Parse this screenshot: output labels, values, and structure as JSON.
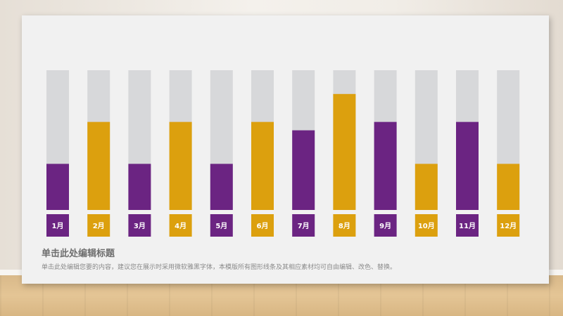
{
  "chart_data": {
    "type": "bar",
    "categories": [
      "1月",
      "2月",
      "3月",
      "4月",
      "5月",
      "6月",
      "7月",
      "8月",
      "9月",
      "10月",
      "11月",
      "12月"
    ],
    "values": [
      33,
      63,
      33,
      63,
      33,
      63,
      57,
      83,
      63,
      33,
      63,
      33
    ],
    "ylim": [
      0,
      100
    ],
    "xlabel": "",
    "ylabel": "",
    "grid": false,
    "legend": "none",
    "bar_colors": [
      "#6b2482",
      "#dca00e",
      "#6b2482",
      "#dca00e",
      "#6b2482",
      "#dca00e",
      "#6b2482",
      "#dca00e",
      "#6b2482",
      "#dca00e",
      "#6b2482",
      "#dca00e"
    ],
    "track_color": "#d7d8da"
  },
  "text": {
    "title": "单击此处编辑标题",
    "subtitle": "单击此处编辑您要的内容，建议您在展示时采用微软雅黑字体，本模版所有图形线条及其相应素材均可自由编辑、改色、替换。"
  }
}
